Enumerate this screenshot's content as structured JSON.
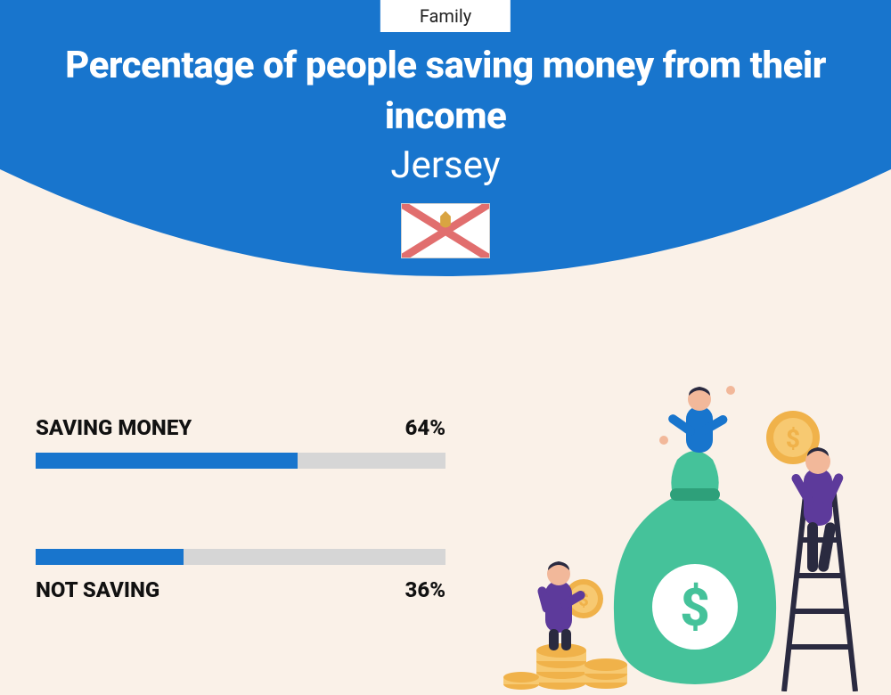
{
  "category": "Family",
  "title": "Percentage of people saving money from their income",
  "region": "Jersey",
  "colors": {
    "header_bg": "#1875cd",
    "page_bg": "#faf1e8",
    "bar_fill": "#1875cd",
    "bar_track": "#d6d6d6",
    "text_dark": "#111111",
    "text_light": "#ffffff",
    "flag_red": "#e16e6e",
    "flag_crest": "#d9a441",
    "money_green": "#45c29a",
    "money_green_dark": "#2ea07a",
    "coin_gold": "#f0b24a",
    "coin_gold_light": "#f7c971",
    "person_purple": "#5d3a9b",
    "person_blue": "#1875cd",
    "person_skin": "#f2b89a",
    "person_hair": "#2a2a40",
    "ladder": "#2a2a40"
  },
  "bars": [
    {
      "label": "SAVING MONEY",
      "value": 64,
      "display": "64%",
      "label_position": "above"
    },
    {
      "label": "NOT SAVING",
      "value": 36,
      "display": "36%",
      "label_position": "below"
    }
  ]
}
